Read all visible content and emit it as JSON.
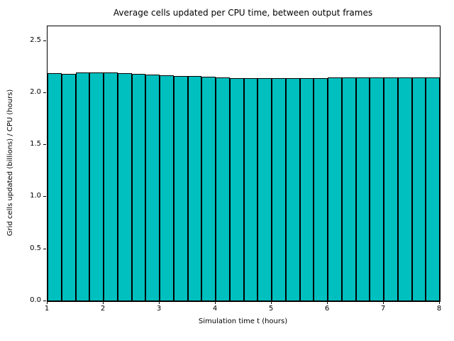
{
  "chart_data": {
    "type": "bar",
    "title": "Average cells updated per CPU time, between output frames",
    "xlabel": "Simulation time t (hours)",
    "ylabel": "Grid cells updated (billions) / CPU (hours)",
    "x": [
      1.0,
      1.25,
      1.5,
      1.75,
      2.0,
      2.25,
      2.5,
      2.75,
      3.0,
      3.25,
      3.5,
      3.75,
      4.0,
      4.25,
      4.5,
      4.75,
      5.0,
      5.25,
      5.5,
      5.75,
      6.0,
      6.25,
      6.5,
      6.75,
      7.0,
      7.25,
      7.5,
      7.75
    ],
    "bin_width": 0.25,
    "values": [
      2.19,
      2.18,
      2.2,
      2.2,
      2.2,
      2.19,
      2.185,
      2.175,
      2.17,
      2.165,
      2.16,
      2.155,
      2.15,
      2.145,
      2.14,
      2.14,
      2.14,
      2.14,
      2.145,
      2.145,
      2.15,
      2.15,
      2.15,
      2.15,
      2.15,
      2.15,
      2.15,
      2.15
    ],
    "xlim": [
      1,
      8
    ],
    "ylim": [
      0,
      2.64
    ],
    "xticks": [
      1,
      2,
      3,
      4,
      5,
      6,
      7,
      8
    ],
    "yticks": [
      0.0,
      0.5,
      1.0,
      1.5,
      2.0,
      2.5
    ],
    "ytick_decimals": 1,
    "bar_color": "#00bfbf",
    "bar_edge_color": "#000000",
    "axis_color": "#000000",
    "grid": false,
    "legend": null
  }
}
